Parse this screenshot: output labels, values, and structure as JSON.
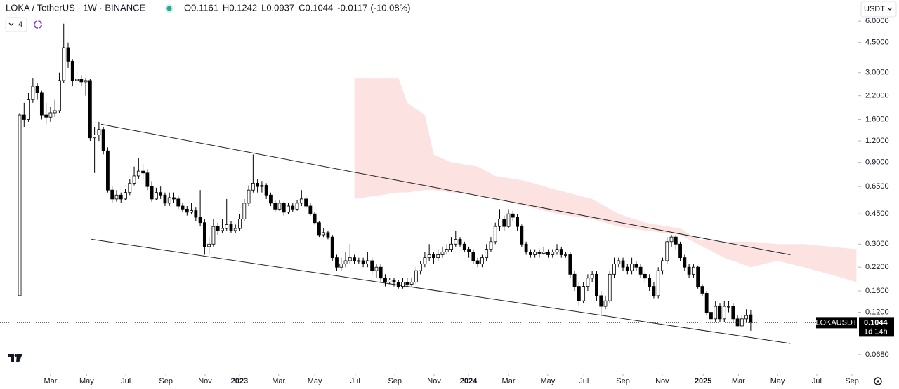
{
  "chart_data": {
    "type": "candlestick",
    "title": "LOKA / TetherUS · 1W · BINANCE",
    "legend_values": [
      {
        "label": "O",
        "value": 0.1161
      },
      {
        "label": "H",
        "value": 0.1242
      },
      {
        "label": "L",
        "value": 0.0937
      },
      {
        "label": "C",
        "value": 0.1044
      }
    ],
    "change": -0.0117,
    "change_label": "(-10.08%)",
    "indicator_count": 4,
    "currency": "USDT",
    "symbol_tag": "LOKAUSDT",
    "countdown": "1d 14h",
    "log_scale": true,
    "up_color": "#ffffff",
    "down_color": "#000000",
    "cloud_color": "#fde2e2",
    "xlim": [
      -4.47,
      190.1
    ],
    "ylim": [
      0.0542,
      6.6
    ],
    "yticks": [
      {
        "value": 6,
        "label": "6.0000"
      },
      {
        "value": 4.5,
        "label": "4.5000"
      },
      {
        "value": 3,
        "label": "3.0000"
      },
      {
        "value": 2.2,
        "label": "2.2000"
      },
      {
        "value": 1.6,
        "label": "1.6000"
      },
      {
        "value": 1.2,
        "label": "1.2000"
      },
      {
        "value": 0.9,
        "label": "0.9000"
      },
      {
        "value": 0.65,
        "label": "0.6500"
      },
      {
        "value": 0.45,
        "label": "0.4500"
      },
      {
        "value": 0.3,
        "label": "0.3000"
      },
      {
        "value": 0.22,
        "label": "0.2200"
      },
      {
        "value": 0.16,
        "label": "0.1600"
      },
      {
        "value": 0.12,
        "label": "0.1200"
      },
      {
        "value": 0.068,
        "label": "0.0680"
      }
    ],
    "xticks": [
      {
        "value": 7.0,
        "label": "Mar"
      },
      {
        "value": 15.2,
        "label": "May"
      },
      {
        "value": 24.1,
        "label": "Jul"
      },
      {
        "value": 33.2,
        "label": "Sep"
      },
      {
        "value": 42.1,
        "label": "Nov"
      },
      {
        "value": 49.9,
        "label": "2023"
      },
      {
        "value": 58.8,
        "label": "Mar"
      },
      {
        "value": 67.0,
        "label": "May"
      },
      {
        "value": 76.2,
        "label": "Jul"
      },
      {
        "value": 85.2,
        "label": "Sep"
      },
      {
        "value": 94.1,
        "label": "Nov"
      },
      {
        "value": 101.9,
        "label": "2024"
      },
      {
        "value": 111.0,
        "label": "Mar"
      },
      {
        "value": 119.9,
        "label": "May"
      },
      {
        "value": 128.1,
        "label": "Jul"
      },
      {
        "value": 137.0,
        "label": "Sep"
      },
      {
        "value": 145.9,
        "label": "Nov"
      },
      {
        "value": 155.2,
        "label": "2025"
      },
      {
        "value": 163.2,
        "label": "Mar"
      },
      {
        "value": 172.1,
        "label": "May"
      },
      {
        "value": 181.0,
        "label": "Jul"
      },
      {
        "value": 189.0,
        "label": "Sep"
      }
    ],
    "candles": [
      [
        0.15,
        1.75,
        0.15,
        1.7
      ],
      [
        1.7,
        2.0,
        1.45,
        1.6
      ],
      [
        1.6,
        2.3,
        1.55,
        2.1
      ],
      [
        2.1,
        2.8,
        2.0,
        2.5
      ],
      [
        2.5,
        2.6,
        2.1,
        2.3
      ],
      [
        2.3,
        2.35,
        1.6,
        1.7
      ],
      [
        1.7,
        2.0,
        1.5,
        1.65
      ],
      [
        1.65,
        1.9,
        1.55,
        1.75
      ],
      [
        1.75,
        2.1,
        1.65,
        1.8
      ],
      [
        1.8,
        3.0,
        1.75,
        2.7
      ],
      [
        2.7,
        5.8,
        2.6,
        4.2
      ],
      [
        4.2,
        4.5,
        3.2,
        3.5
      ],
      [
        3.5,
        3.6,
        2.5,
        2.7
      ],
      [
        2.7,
        3.1,
        2.6,
        2.75
      ],
      [
        2.75,
        2.9,
        2.5,
        2.65
      ],
      [
        2.65,
        2.8,
        2.2,
        2.7
      ],
      [
        2.7,
        2.75,
        1.2,
        1.25
      ],
      [
        1.25,
        1.45,
        0.78,
        1.3
      ],
      [
        1.3,
        1.55,
        1.2,
        1.4
      ],
      [
        1.4,
        1.45,
        1.0,
        1.05
      ],
      [
        1.05,
        1.1,
        0.6,
        0.62
      ],
      [
        0.62,
        0.65,
        0.52,
        0.55
      ],
      [
        0.55,
        0.62,
        0.53,
        0.58
      ],
      [
        0.58,
        0.6,
        0.52,
        0.55
      ],
      [
        0.55,
        0.63,
        0.54,
        0.6
      ],
      [
        0.6,
        0.72,
        0.58,
        0.68
      ],
      [
        0.68,
        0.85,
        0.66,
        0.75
      ],
      [
        0.75,
        0.95,
        0.72,
        0.8
      ],
      [
        0.8,
        0.88,
        0.72,
        0.78
      ],
      [
        0.78,
        0.82,
        0.62,
        0.65
      ],
      [
        0.65,
        0.7,
        0.53,
        0.55
      ],
      [
        0.55,
        0.64,
        0.54,
        0.6
      ],
      [
        0.6,
        0.65,
        0.55,
        0.58
      ],
      [
        0.58,
        0.6,
        0.5,
        0.52
      ],
      [
        0.52,
        0.6,
        0.5,
        0.56
      ],
      [
        0.56,
        0.6,
        0.52,
        0.55
      ],
      [
        0.55,
        0.57,
        0.48,
        0.5
      ],
      [
        0.5,
        0.52,
        0.46,
        0.48
      ],
      [
        0.48,
        0.5,
        0.44,
        0.46
      ],
      [
        0.46,
        0.52,
        0.45,
        0.47
      ],
      [
        0.47,
        0.49,
        0.41,
        0.43
      ],
      [
        0.43,
        0.62,
        0.38,
        0.4
      ],
      [
        0.4,
        0.42,
        0.26,
        0.29
      ],
      [
        0.29,
        0.33,
        0.26,
        0.3
      ],
      [
        0.3,
        0.42,
        0.29,
        0.38
      ],
      [
        0.38,
        0.4,
        0.34,
        0.36
      ],
      [
        0.36,
        0.42,
        0.35,
        0.37
      ],
      [
        0.37,
        0.55,
        0.36,
        0.39
      ],
      [
        0.39,
        0.41,
        0.35,
        0.36
      ],
      [
        0.36,
        0.39,
        0.35,
        0.37
      ],
      [
        0.37,
        0.45,
        0.36,
        0.42
      ],
      [
        0.42,
        0.55,
        0.41,
        0.52
      ],
      [
        0.52,
        0.66,
        0.5,
        0.62
      ],
      [
        0.62,
        1.0,
        0.6,
        0.68
      ],
      [
        0.68,
        0.72,
        0.6,
        0.65
      ],
      [
        0.65,
        0.7,
        0.6,
        0.66
      ],
      [
        0.66,
        0.68,
        0.55,
        0.58
      ],
      [
        0.58,
        0.6,
        0.5,
        0.52
      ],
      [
        0.52,
        0.54,
        0.46,
        0.48
      ],
      [
        0.48,
        0.54,
        0.47,
        0.52
      ],
      [
        0.52,
        0.53,
        0.44,
        0.46
      ],
      [
        0.46,
        0.52,
        0.45,
        0.5
      ],
      [
        0.5,
        0.52,
        0.46,
        0.48
      ],
      [
        0.48,
        0.54,
        0.47,
        0.52
      ],
      [
        0.52,
        0.62,
        0.5,
        0.55
      ],
      [
        0.55,
        0.57,
        0.48,
        0.5
      ],
      [
        0.5,
        0.52,
        0.44,
        0.45
      ],
      [
        0.45,
        0.46,
        0.39,
        0.4
      ],
      [
        0.4,
        0.41,
        0.33,
        0.34
      ],
      [
        0.34,
        0.37,
        0.33,
        0.35
      ],
      [
        0.35,
        0.36,
        0.32,
        0.33
      ],
      [
        0.33,
        0.34,
        0.24,
        0.25
      ],
      [
        0.25,
        0.26,
        0.21,
        0.22
      ],
      [
        0.22,
        0.25,
        0.21,
        0.23
      ],
      [
        0.23,
        0.27,
        0.22,
        0.24
      ],
      [
        0.24,
        0.3,
        0.23,
        0.25
      ],
      [
        0.25,
        0.26,
        0.23,
        0.24
      ],
      [
        0.24,
        0.25,
        0.23,
        0.24
      ],
      [
        0.24,
        0.25,
        0.22,
        0.23
      ],
      [
        0.23,
        0.27,
        0.22,
        0.24
      ],
      [
        0.24,
        0.25,
        0.2,
        0.21
      ],
      [
        0.21,
        0.23,
        0.19,
        0.22
      ],
      [
        0.22,
        0.23,
        0.18,
        0.19
      ],
      [
        0.19,
        0.2,
        0.17,
        0.18
      ],
      [
        0.18,
        0.19,
        0.175,
        0.185
      ],
      [
        0.185,
        0.19,
        0.17,
        0.18
      ],
      [
        0.18,
        0.185,
        0.165,
        0.17
      ],
      [
        0.17,
        0.19,
        0.165,
        0.18
      ],
      [
        0.18,
        0.19,
        0.17,
        0.175
      ],
      [
        0.175,
        0.19,
        0.17,
        0.18
      ],
      [
        0.18,
        0.22,
        0.175,
        0.21
      ],
      [
        0.21,
        0.24,
        0.2,
        0.23
      ],
      [
        0.23,
        0.27,
        0.22,
        0.25
      ],
      [
        0.25,
        0.3,
        0.24,
        0.26
      ],
      [
        0.26,
        0.27,
        0.23,
        0.25
      ],
      [
        0.25,
        0.28,
        0.24,
        0.26
      ],
      [
        0.26,
        0.29,
        0.25,
        0.27
      ],
      [
        0.27,
        0.3,
        0.26,
        0.28
      ],
      [
        0.28,
        0.33,
        0.27,
        0.3
      ],
      [
        0.3,
        0.36,
        0.29,
        0.32
      ],
      [
        0.32,
        0.33,
        0.29,
        0.3
      ],
      [
        0.3,
        0.31,
        0.27,
        0.28
      ],
      [
        0.28,
        0.29,
        0.25,
        0.27
      ],
      [
        0.27,
        0.28,
        0.23,
        0.24
      ],
      [
        0.24,
        0.25,
        0.22,
        0.23
      ],
      [
        0.23,
        0.26,
        0.22,
        0.25
      ],
      [
        0.25,
        0.3,
        0.24,
        0.28
      ],
      [
        0.28,
        0.33,
        0.27,
        0.31
      ],
      [
        0.31,
        0.4,
        0.3,
        0.38
      ],
      [
        0.38,
        0.48,
        0.36,
        0.42
      ],
      [
        0.42,
        0.44,
        0.36,
        0.38
      ],
      [
        0.38,
        0.48,
        0.37,
        0.45
      ],
      [
        0.45,
        0.47,
        0.41,
        0.43
      ],
      [
        0.43,
        0.45,
        0.36,
        0.38
      ],
      [
        0.38,
        0.39,
        0.29,
        0.3
      ],
      [
        0.3,
        0.31,
        0.26,
        0.27
      ],
      [
        0.27,
        0.28,
        0.25,
        0.26
      ],
      [
        0.26,
        0.28,
        0.25,
        0.27
      ],
      [
        0.27,
        0.28,
        0.25,
        0.265
      ],
      [
        0.265,
        0.29,
        0.26,
        0.27
      ],
      [
        0.27,
        0.28,
        0.25,
        0.26
      ],
      [
        0.26,
        0.28,
        0.25,
        0.27
      ],
      [
        0.27,
        0.3,
        0.26,
        0.28
      ],
      [
        0.28,
        0.29,
        0.25,
        0.26
      ],
      [
        0.26,
        0.27,
        0.25,
        0.26
      ],
      [
        0.26,
        0.27,
        0.19,
        0.2
      ],
      [
        0.2,
        0.21,
        0.16,
        0.17
      ],
      [
        0.17,
        0.18,
        0.13,
        0.14
      ],
      [
        0.14,
        0.18,
        0.135,
        0.17
      ],
      [
        0.17,
        0.2,
        0.16,
        0.19
      ],
      [
        0.19,
        0.21,
        0.18,
        0.2
      ],
      [
        0.2,
        0.21,
        0.14,
        0.15
      ],
      [
        0.15,
        0.16,
        0.115,
        0.13
      ],
      [
        0.13,
        0.15,
        0.125,
        0.14
      ],
      [
        0.14,
        0.21,
        0.135,
        0.2
      ],
      [
        0.2,
        0.25,
        0.19,
        0.23
      ],
      [
        0.23,
        0.25,
        0.22,
        0.24
      ],
      [
        0.24,
        0.25,
        0.21,
        0.22
      ],
      [
        0.22,
        0.23,
        0.2,
        0.21
      ],
      [
        0.21,
        0.25,
        0.2,
        0.23
      ],
      [
        0.23,
        0.24,
        0.21,
        0.22
      ],
      [
        0.22,
        0.23,
        0.19,
        0.2
      ],
      [
        0.2,
        0.21,
        0.18,
        0.19
      ],
      [
        0.19,
        0.2,
        0.16,
        0.17
      ],
      [
        0.17,
        0.18,
        0.145,
        0.15
      ],
      [
        0.15,
        0.22,
        0.145,
        0.21
      ],
      [
        0.21,
        0.25,
        0.2,
        0.24
      ],
      [
        0.24,
        0.33,
        0.23,
        0.31
      ],
      [
        0.31,
        0.34,
        0.29,
        0.33
      ],
      [
        0.33,
        0.34,
        0.28,
        0.3
      ],
      [
        0.3,
        0.31,
        0.24,
        0.25
      ],
      [
        0.25,
        0.26,
        0.21,
        0.22
      ],
      [
        0.22,
        0.23,
        0.19,
        0.2
      ],
      [
        0.2,
        0.23,
        0.19,
        0.22
      ],
      [
        0.22,
        0.225,
        0.165,
        0.17
      ],
      [
        0.17,
        0.175,
        0.15,
        0.155
      ],
      [
        0.155,
        0.16,
        0.115,
        0.12
      ],
      [
        0.12,
        0.13,
        0.09,
        0.11
      ],
      [
        0.11,
        0.14,
        0.105,
        0.13
      ],
      [
        0.13,
        0.135,
        0.105,
        0.11
      ],
      [
        0.11,
        0.14,
        0.105,
        0.13
      ],
      [
        0.13,
        0.14,
        0.12,
        0.13
      ],
      [
        0.13,
        0.135,
        0.105,
        0.11
      ],
      [
        0.11,
        0.115,
        0.1,
        0.1
      ],
      [
        0.1,
        0.115,
        0.098,
        0.11
      ],
      [
        0.11,
        0.125,
        0.105,
        0.115
      ],
      [
        0.1161,
        0.1242,
        0.0937,
        0.1044
      ]
    ],
    "cloud": {
      "x": [
        76,
        86,
        88,
        92,
        94,
        98,
        104,
        108,
        115,
        122,
        130,
        136,
        142,
        150,
        154,
        160,
        166,
        172,
        178,
        184,
        190
      ],
      "upper": [
        2.8,
        2.8,
        2.0,
        1.7,
        1.0,
        0.9,
        0.85,
        0.75,
        0.7,
        0.62,
        0.55,
        0.45,
        0.4,
        0.37,
        0.32,
        0.31,
        0.31,
        0.3,
        0.3,
        0.29,
        0.28
      ],
      "lower": [
        0.55,
        0.6,
        0.6,
        0.62,
        0.62,
        0.6,
        0.58,
        0.55,
        0.5,
        0.45,
        0.42,
        0.38,
        0.36,
        0.34,
        0.3,
        0.25,
        0.22,
        0.24,
        0.22,
        0.2,
        0.18
      ]
    },
    "trendlines": [
      {
        "x": [
          18.5,
          175
        ],
        "y": [
          1.5,
          0.26
        ]
      },
      {
        "x": [
          16.3,
          175
        ],
        "y": [
          0.32,
          0.079
        ]
      }
    ]
  }
}
